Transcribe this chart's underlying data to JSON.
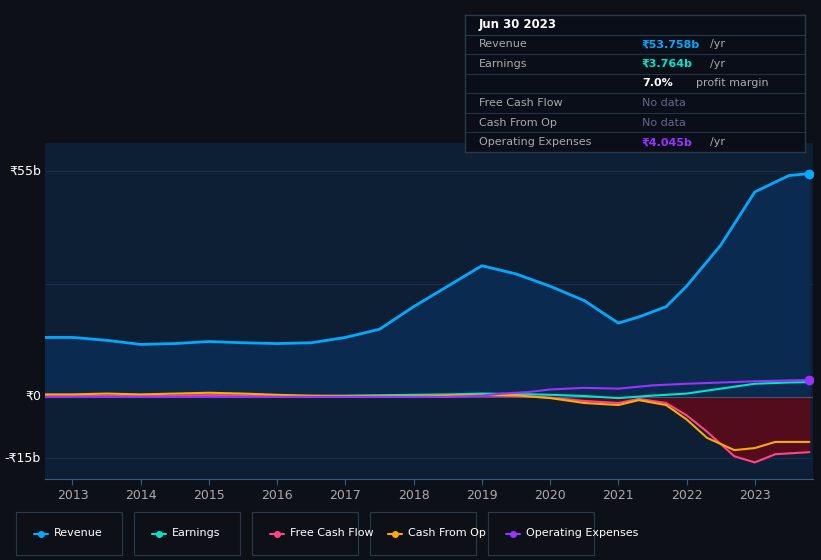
{
  "background_color": "#0d1117",
  "plot_bg_color": "#0d1f35",
  "grid_color": "#1e3a5f",
  "revenue_color": "#00aaff",
  "revenue_fill": "#0a2a50",
  "earnings_color": "#00e5cc",
  "free_cash_color": "#ff4488",
  "cash_from_op_color": "#ffaa00",
  "op_expenses_color": "#9933ff",
  "neg_fill_color": "#5a0a1a",
  "ylabel_top": "₹55b",
  "ylabel_mid": "₹0",
  "ylabel_bot": "-₹15b",
  "ylim": [
    -20,
    62
  ],
  "xlim": [
    2012.6,
    2023.85
  ],
  "xticks": [
    2013,
    2014,
    2015,
    2016,
    2017,
    2018,
    2019,
    2020,
    2021,
    2022,
    2023
  ],
  "revenue_x": [
    2012.6,
    2013,
    2013.5,
    2014,
    2014.5,
    2015,
    2015.5,
    2016,
    2016.5,
    2017,
    2017.5,
    2018,
    2018.5,
    2019,
    2019.5,
    2020,
    2020.5,
    2021,
    2021.3,
    2021.7,
    2022,
    2022.5,
    2023,
    2023.5,
    2023.8
  ],
  "revenue_y": [
    14.5,
    14.5,
    13.8,
    12.8,
    13.0,
    13.5,
    13.2,
    13.0,
    13.2,
    14.5,
    16.5,
    22.0,
    27.0,
    32.0,
    30.0,
    27.0,
    23.5,
    18.0,
    19.5,
    22.0,
    27.0,
    37.0,
    50.0,
    54.0,
    54.5
  ],
  "earnings_x": [
    2012.6,
    2013,
    2013.5,
    2014,
    2014.5,
    2015,
    2015.5,
    2016,
    2016.5,
    2017,
    2017.5,
    2018,
    2018.5,
    2019,
    2019.5,
    2020,
    2020.5,
    2021,
    2021.5,
    2022,
    2022.5,
    2023,
    2023.5,
    2023.8
  ],
  "earnings_y": [
    0.3,
    0.3,
    0.2,
    0.1,
    0.2,
    0.3,
    0.3,
    0.2,
    0.2,
    0.3,
    0.4,
    0.5,
    0.6,
    0.8,
    0.7,
    0.5,
    0.2,
    -0.3,
    0.3,
    0.8,
    2.0,
    3.2,
    3.5,
    3.6
  ],
  "free_cash_x": [
    2012.6,
    2013,
    2013.5,
    2014,
    2014.5,
    2015,
    2015.5,
    2016,
    2016.5,
    2017,
    2017.5,
    2018,
    2018.5,
    2019,
    2019.5,
    2020,
    2020.5,
    2021,
    2021.3,
    2021.7,
    2022,
    2022.3,
    2022.7,
    2023,
    2023.3,
    2023.8
  ],
  "free_cash_y": [
    0.2,
    0.2,
    0.3,
    0.2,
    0.3,
    0.4,
    0.3,
    0.1,
    0.0,
    0.1,
    0.1,
    0.2,
    0.3,
    0.3,
    0.2,
    -0.2,
    -1.0,
    -1.5,
    -0.5,
    -1.5,
    -4.5,
    -8.5,
    -14.5,
    -16.0,
    -14.0,
    -13.5
  ],
  "cash_from_op_x": [
    2012.6,
    2013,
    2013.5,
    2014,
    2014.5,
    2015,
    2015.5,
    2016,
    2016.5,
    2017,
    2017.5,
    2018,
    2018.5,
    2019,
    2019.5,
    2020,
    2020.5,
    2021,
    2021.3,
    2021.7,
    2022,
    2022.3,
    2022.7,
    2023,
    2023.3,
    2023.8
  ],
  "cash_from_op_y": [
    0.6,
    0.6,
    0.8,
    0.6,
    0.8,
    1.0,
    0.8,
    0.5,
    0.3,
    0.2,
    0.2,
    0.2,
    0.3,
    0.5,
    0.4,
    -0.3,
    -1.5,
    -2.0,
    -0.8,
    -2.0,
    -5.5,
    -10.0,
    -13.0,
    -12.5,
    -11.0,
    -11.0
  ],
  "op_expenses_x": [
    2012.6,
    2013,
    2013.5,
    2014,
    2014.5,
    2015,
    2015.5,
    2016,
    2016.5,
    2017,
    2017.5,
    2018,
    2018.5,
    2019,
    2019.3,
    2019.7,
    2020,
    2020.5,
    2021,
    2021.5,
    2022,
    2022.5,
    2023,
    2023.5,
    2023.8
  ],
  "op_expenses_y": [
    0.0,
    0.0,
    0.0,
    0.0,
    0.0,
    0.0,
    0.0,
    0.0,
    0.0,
    0.0,
    0.0,
    0.0,
    0.0,
    0.3,
    0.8,
    1.2,
    1.8,
    2.2,
    2.0,
    2.8,
    3.2,
    3.5,
    3.8,
    4.0,
    4.1
  ],
  "legend_items": [
    {
      "label": "Revenue",
      "color": "#00aaff"
    },
    {
      "label": "Earnings",
      "color": "#00e5cc"
    },
    {
      "label": "Free Cash Flow",
      "color": "#ff4488"
    },
    {
      "label": "Cash From Op",
      "color": "#ffaa00"
    },
    {
      "label": "Operating Expenses",
      "color": "#9933ff"
    }
  ],
  "infobox": {
    "date": "Jun 30 2023",
    "rows": [
      {
        "label": "Revenue",
        "value": "₹53.758b",
        "suffix": " /yr",
        "color": "#00aaff"
      },
      {
        "label": "Earnings",
        "value": "₹3.764b",
        "suffix": " /yr",
        "color": "#00e5cc"
      },
      {
        "label": "",
        "value": "7.0%",
        "suffix": " profit margin",
        "color": "#ffffff"
      },
      {
        "label": "Free Cash Flow",
        "value": "No data",
        "suffix": "",
        "color": "#666688"
      },
      {
        "label": "Cash From Op",
        "value": "No data",
        "suffix": "",
        "color": "#666688"
      },
      {
        "label": "Operating Expenses",
        "value": "₹4.045b",
        "suffix": " /yr",
        "color": "#9933ff"
      }
    ]
  }
}
